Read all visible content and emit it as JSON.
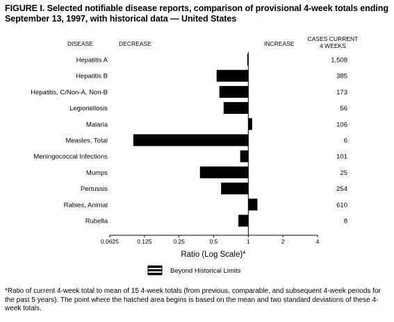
{
  "title": "FIGURE I. Selected notifiable disease reports, comparison of provisional 4-week totals ending September 13, 1997, with historical data — United States",
  "headers": {
    "disease": "DISEASE",
    "decrease": "DECREASE",
    "increase": "INCREASE",
    "cases_line1": "CASES CURRENT",
    "cases_line2": "4 WEEKS"
  },
  "x_axis_label": "Ratio (Log Scale)*",
  "legend_label": "Beyond Historical Limits",
  "footnote": "*Ratio of current 4-week total to mean of 15 4-week totals (from previous, comparable, and subsequent 4-week periods for the past 5 years). The point where the hatched area begins is based on the mean and two standard deviations of these 4-week totals.",
  "chart_data": {
    "type": "bar",
    "orientation": "horizontal",
    "scale": "log2",
    "xlim": [
      0.0625,
      4
    ],
    "xticks": [
      0.0625,
      0.125,
      0.25,
      0.5,
      1,
      2,
      4
    ],
    "xtick_labels": [
      "0.0625",
      "0.125",
      "0.25",
      "0.5",
      "1",
      "2",
      "4"
    ],
    "baseline": 1,
    "bar_color": "#000000",
    "categories": [
      "Hepatitis A",
      "Hepatitis B",
      "Hepatitis, C/Non-A, Non-B",
      "Legionellosis",
      "Malaria",
      "Measles, Total",
      "Meningococcal Infections",
      "Mumps",
      "Pertussis",
      "Rabies, Animal",
      "Rubella"
    ],
    "values": [
      0.98,
      0.53,
      0.56,
      0.61,
      1.08,
      0.1,
      0.85,
      0.38,
      0.58,
      1.2,
      0.82
    ],
    "cases": [
      "1,508",
      "385",
      "173",
      "56",
      "106",
      "6",
      "101",
      "25",
      "254",
      "610",
      "8"
    ]
  }
}
